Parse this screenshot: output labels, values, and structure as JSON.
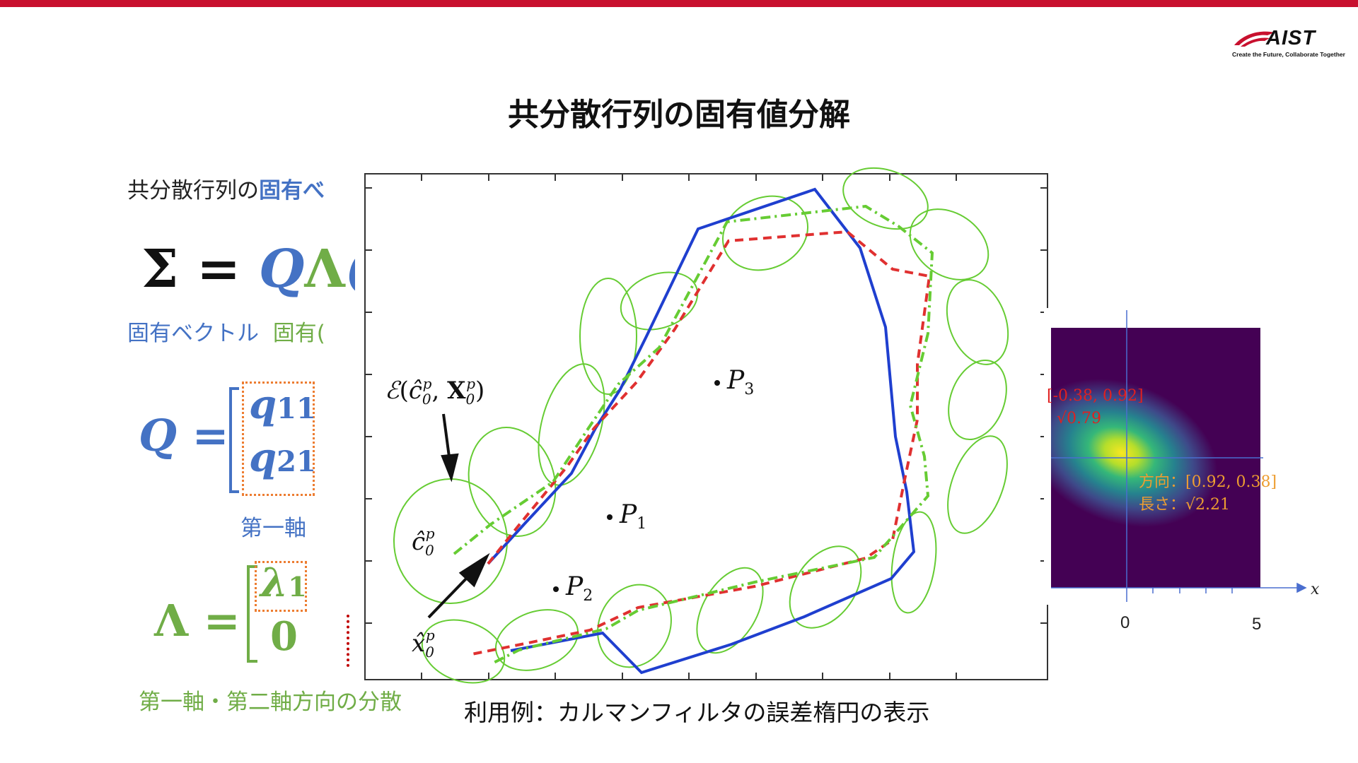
{
  "header": {
    "logo_text": "AIST",
    "logo_tagline": "Create the Future, Collaborate Together",
    "accent_color": "#c8102e"
  },
  "slide": {
    "title": "共分散行列の固有値分解",
    "intro_prefix": "共分散行列の",
    "intro_highlight": "固有べ",
    "equation_sigma": "Σ",
    "equation_equals": "=",
    "equation_Q": "Q",
    "equation_Lambda": "Λ",
    "equation_tail": "(",
    "label_eigenvector": "固有ベクトル",
    "label_eigenvalue_partial": "固有(",
    "eqQ_lhs": "Q",
    "eqQ_equals": "=",
    "q11": "q",
    "q11_sub": "11",
    "q21": "q",
    "q21_sub": "21",
    "first_axis": "第一軸",
    "eqL_lhs": "Λ",
    "eqL_equals": "=",
    "lambda1": "λ",
    "lambda1_sub": "1",
    "zero": "0",
    "variance_caption": "第一軸・第二軸方向の分散",
    "usage_caption": "利用例：カルマンフィルタの誤差楕円の表示"
  },
  "figure": {
    "label_P1": "P",
    "sub_P1": "1",
    "label_P2": "P",
    "sub_P2": "2",
    "label_P3": "P",
    "sub_P3": "3",
    "ellipse_label_script": "ℰ",
    "ellipse_label_c": "ĉ",
    "ellipse_label_sub0": "0",
    "ellipse_label_supp": "p",
    "ellipse_label_X": "X",
    "c0_label": "ĉ",
    "c0_sub": "0",
    "c0_sup": "p",
    "x0_label": "x̂",
    "x0_sub": "0",
    "x0_sup": "p",
    "colors": {
      "true_path": "#1f3fcf",
      "estimate": "#e03030",
      "ellipse": "#66cc33"
    }
  },
  "heatmap": {
    "red_direction": "[-0.38, 0.92]",
    "red_length": "√0.79",
    "orange_direction": "方向：[0.92, 0.38]",
    "orange_length": "長さ：√2.21",
    "tick_0": "0",
    "tick_5": "5",
    "x_axis_label": "x",
    "colors": {
      "red": "#e02020",
      "orange": "#ed9d31",
      "axis": "#4a6ecf"
    }
  }
}
